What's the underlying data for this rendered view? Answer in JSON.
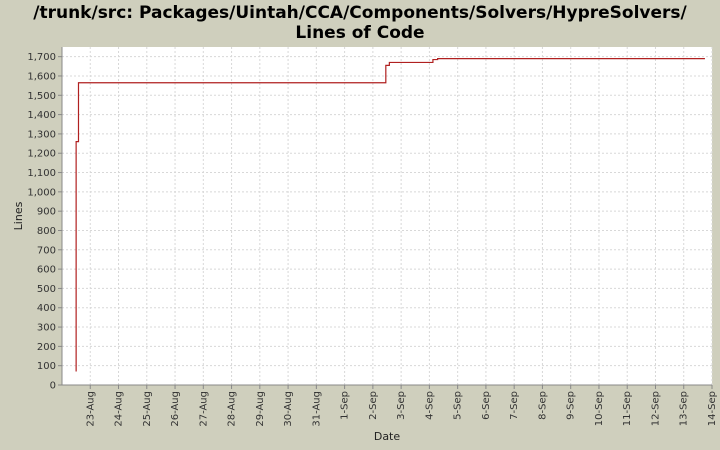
{
  "title_lines": [
    "/trunk/src: Packages/Uintah/CCA/Components/Solvers/HypreSolvers/",
    "Lines of Code"
  ],
  "chart_data": {
    "type": "line",
    "title": "/trunk/src: Packages/Uintah/CCA/Components/Solvers/HypreSolvers/ Lines of Code",
    "xlabel": "Date",
    "ylabel": "Lines",
    "xlim": [
      "2007-08-22",
      "2007-09-14"
    ],
    "ylim": [
      0,
      1750
    ],
    "yticks": [
      0,
      100,
      200,
      300,
      400,
      500,
      600,
      700,
      800,
      900,
      1000,
      1100,
      1200,
      1300,
      1400,
      1500,
      1600,
      1700
    ],
    "ytick_labels": [
      "0",
      "100",
      "200",
      "300",
      "400",
      "500",
      "600",
      "700",
      "800",
      "900",
      "1,000",
      "1,100",
      "1,200",
      "1,300",
      "1,400",
      "1,500",
      "1,600",
      "1,700"
    ],
    "xticks": [
      "2007-08-23",
      "2007-08-24",
      "2007-08-25",
      "2007-08-26",
      "2007-08-27",
      "2007-08-28",
      "2007-08-29",
      "2007-08-30",
      "2007-08-31",
      "2007-09-01",
      "2007-09-02",
      "2007-09-03",
      "2007-09-04",
      "2007-09-05",
      "2007-09-06",
      "2007-09-07",
      "2007-09-08",
      "2007-09-09",
      "2007-09-10",
      "2007-09-11",
      "2007-09-12",
      "2007-09-13",
      "2007-09-14"
    ],
    "xtick_labels": [
      "23-Aug",
      "24-Aug",
      "25-Aug",
      "26-Aug",
      "27-Aug",
      "28-Aug",
      "29-Aug",
      "30-Aug",
      "31-Aug",
      "1-Sep",
      "2-Sep",
      "3-Sep",
      "4-Sep",
      "5-Sep",
      "6-Sep",
      "7-Sep",
      "8-Sep",
      "9-Sep",
      "10-Sep",
      "11-Sep",
      "12-Sep",
      "13-Sep",
      "14-Sep"
    ],
    "grid": true,
    "line_style": "step",
    "series": [
      {
        "color": "#b02020",
        "points": [
          {
            "x": "2007-08-22T12:00",
            "y": 70
          },
          {
            "x": "2007-08-22T12:00",
            "y": 1260
          },
          {
            "x": "2007-08-22T14:00",
            "y": 1260
          },
          {
            "x": "2007-08-22T14:00",
            "y": 1565
          },
          {
            "x": "2007-09-02T11:00",
            "y": 1565
          },
          {
            "x": "2007-09-02T11:00",
            "y": 1655
          },
          {
            "x": "2007-09-02T14:00",
            "y": 1655
          },
          {
            "x": "2007-09-02T14:00",
            "y": 1670
          },
          {
            "x": "2007-09-04T03:00",
            "y": 1670
          },
          {
            "x": "2007-09-04T03:00",
            "y": 1685
          },
          {
            "x": "2007-09-04T07:00",
            "y": 1685
          },
          {
            "x": "2007-09-04T07:00",
            "y": 1690
          },
          {
            "x": "2007-09-13T18:00",
            "y": 1690
          }
        ]
      }
    ]
  }
}
